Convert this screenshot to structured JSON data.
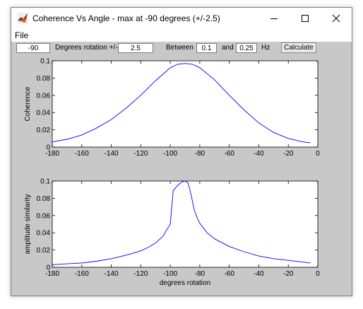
{
  "window": {
    "title": "Coherence Vs Angle - max at -90 degrees (+/-2.5)",
    "menu": {
      "file_label": "File"
    }
  },
  "controls": {
    "angle_value": "-90",
    "degrees_label": "Degrees rotation +/-",
    "tolerance_value": "2.5",
    "between_label": "Between",
    "freq_low_value": "0.1",
    "and_label": "and",
    "freq_high_value": "0.25",
    "hz_label": "Hz",
    "calculate_label": "Calculate"
  },
  "chart_data": [
    {
      "type": "line",
      "ylabel": "Coherence",
      "xlabel": "",
      "xlim": [
        -180,
        0
      ],
      "ylim": [
        0,
        0.1
      ],
      "xticks": [
        "-180",
        "-160",
        "-140",
        "-120",
        "-100",
        "-80",
        "-60",
        "-40",
        "-20",
        "0"
      ],
      "yticks": [
        "0",
        "0.02",
        "0.04",
        "0.06",
        "0.08",
        "0.1"
      ],
      "x": [
        -180,
        -170,
        -160,
        -150,
        -140,
        -130,
        -120,
        -110,
        -100,
        -95,
        -90,
        -85,
        -80,
        -70,
        -60,
        -50,
        -40,
        -30,
        -20,
        -10,
        -5
      ],
      "y": [
        0.006,
        0.009,
        0.014,
        0.022,
        0.032,
        0.045,
        0.06,
        0.077,
        0.092,
        0.096,
        0.097,
        0.096,
        0.092,
        0.078,
        0.06,
        0.043,
        0.028,
        0.017,
        0.01,
        0.006,
        0.005
      ],
      "color": "#0000ff"
    },
    {
      "type": "line",
      "ylabel": "amplitude similarity",
      "xlabel": "degrees rotation",
      "xlim": [
        -180,
        0
      ],
      "ylim": [
        0,
        0.1
      ],
      "xticks": [
        "-180",
        "-160",
        "-140",
        "-120",
        "-100",
        "-80",
        "-60",
        "-40",
        "-20",
        "0"
      ],
      "yticks": [
        "0",
        "0.02",
        "0.04",
        "0.06",
        "0.08",
        "0.1"
      ],
      "x": [
        -180,
        -170,
        -160,
        -150,
        -140,
        -130,
        -120,
        -115,
        -110,
        -105,
        -100,
        -98,
        -95,
        -92,
        -90,
        -88,
        -86,
        -84,
        -82,
        -80,
        -75,
        -70,
        -60,
        -50,
        -40,
        -30,
        -20,
        -10,
        -5
      ],
      "y": [
        0.003,
        0.004,
        0.005,
        0.007,
        0.01,
        0.014,
        0.019,
        0.023,
        0.028,
        0.036,
        0.05,
        0.089,
        0.095,
        0.099,
        0.1,
        0.098,
        0.085,
        0.068,
        0.058,
        0.051,
        0.04,
        0.033,
        0.024,
        0.018,
        0.013,
        0.01,
        0.008,
        0.006,
        0.005
      ],
      "color": "#0000ff"
    }
  ]
}
